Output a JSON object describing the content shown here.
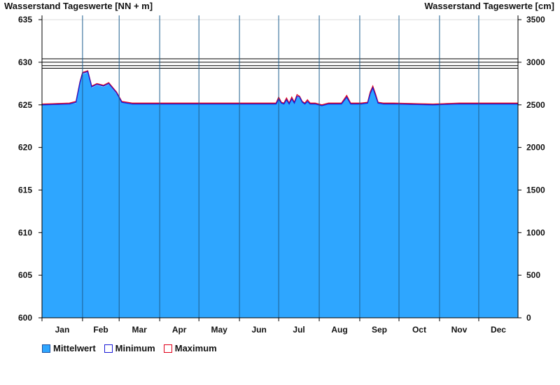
{
  "chart_data": {
    "type": "area",
    "ylabel_left": "Wasserstand Tageswerte [NN + m]",
    "ylabel_right": "Wasserstand Tageswerte [cm]",
    "ylim": [
      600,
      635.5
    ],
    "yticks_left": [
      600,
      605,
      610,
      615,
      620,
      625,
      630,
      635
    ],
    "yticks_right": [
      0,
      500,
      1000,
      1500,
      2000,
      2500,
      3000,
      3500
    ],
    "months": [
      "Jan",
      "Feb",
      "Mar",
      "Apr",
      "May",
      "Jun",
      "Jul",
      "Aug",
      "Sep",
      "Oct",
      "Nov",
      "Dec"
    ],
    "month_lengths": [
      31,
      28,
      31,
      30,
      31,
      30,
      31,
      31,
      30,
      31,
      30,
      31
    ],
    "reference_levels": [
      630.4,
      630.0,
      629.6,
      629.3
    ],
    "legend": [
      {
        "label": "Mittelwert",
        "color": "#2ea6ff"
      },
      {
        "label": "Minimum",
        "color": "#1a1ad6"
      },
      {
        "label": "Maximum",
        "color": "#e0001a"
      }
    ],
    "series": [
      {
        "name": "Mittelwert",
        "x": [
          1,
          22,
          27,
          30,
          32,
          36,
          39,
          43,
          48,
          52,
          58,
          62,
          70,
          80,
          95,
          120,
          150,
          170,
          180,
          182,
          184,
          186,
          188,
          190,
          192,
          194,
          196,
          198,
          200,
          202,
          204,
          206,
          208,
          210,
          215,
          220,
          225,
          230,
          234,
          237,
          240,
          245,
          250,
          252,
          254,
          256,
          258,
          262,
          270,
          300,
          320,
          345,
          365
        ],
        "y": [
          625.0,
          625.1,
          625.2,
          627.5,
          628.6,
          628.8,
          627.0,
          627.3,
          627.1,
          627.4,
          626.3,
          625.3,
          625.1,
          625.1,
          625.1,
          625.1,
          625.1,
          625.1,
          625.1,
          625.6,
          625.2,
          625.1,
          625.5,
          625.1,
          625.6,
          625.2,
          625.9,
          625.8,
          625.3,
          625.1,
          625.4,
          625.1,
          625.1,
          625.1,
          624.9,
          625.1,
          625.1,
          625.1,
          625.8,
          625.1,
          625.1,
          625.1,
          625.2,
          626.2,
          626.9,
          626.0,
          625.2,
          625.1,
          625.1,
          625.0,
          625.1,
          625.1,
          625.1
        ]
      },
      {
        "name": "Minimum",
        "x": [
          1,
          22,
          27,
          30,
          32,
          36,
          39,
          43,
          48,
          52,
          58,
          62,
          70,
          80,
          95,
          120,
          150,
          170,
          180,
          182,
          184,
          186,
          188,
          190,
          192,
          194,
          196,
          198,
          200,
          202,
          204,
          206,
          208,
          210,
          215,
          220,
          225,
          230,
          234,
          237,
          240,
          245,
          250,
          252,
          254,
          256,
          258,
          262,
          270,
          300,
          320,
          345,
          365
        ],
        "y": [
          625.0,
          625.1,
          625.3,
          627.6,
          628.7,
          628.9,
          627.1,
          627.4,
          627.2,
          627.5,
          626.4,
          625.3,
          625.1,
          625.1,
          625.1,
          625.1,
          625.1,
          625.1,
          625.1,
          625.7,
          625.2,
          625.1,
          625.6,
          625.1,
          625.7,
          625.2,
          626.0,
          625.9,
          625.3,
          625.1,
          625.4,
          625.1,
          625.1,
          625.1,
          624.9,
          625.1,
          625.1,
          625.1,
          625.9,
          625.1,
          625.1,
          625.1,
          625.2,
          626.3,
          627.0,
          626.1,
          625.2,
          625.1,
          625.1,
          625.0,
          625.1,
          625.1,
          625.1
        ]
      },
      {
        "name": "Maximum",
        "x": [
          1,
          22,
          27,
          30,
          32,
          36,
          39,
          43,
          48,
          52,
          58,
          62,
          70,
          80,
          95,
          120,
          150,
          170,
          180,
          182,
          184,
          186,
          188,
          190,
          192,
          194,
          196,
          198,
          200,
          202,
          204,
          206,
          208,
          210,
          215,
          220,
          225,
          230,
          234,
          237,
          240,
          245,
          250,
          252,
          254,
          256,
          258,
          262,
          270,
          300,
          320,
          345,
          365
        ],
        "y": [
          625.1,
          625.2,
          625.4,
          627.7,
          628.8,
          629.0,
          627.2,
          627.5,
          627.3,
          627.6,
          626.5,
          625.4,
          625.2,
          625.2,
          625.2,
          625.2,
          625.2,
          625.2,
          625.2,
          625.9,
          625.3,
          625.2,
          625.8,
          625.2,
          625.9,
          625.3,
          626.2,
          626.0,
          625.4,
          625.2,
          625.6,
          625.2,
          625.2,
          625.2,
          625.0,
          625.2,
          625.2,
          625.2,
          626.1,
          625.2,
          625.2,
          625.2,
          625.3,
          626.5,
          627.2,
          626.3,
          625.3,
          625.2,
          625.2,
          625.1,
          625.2,
          625.2,
          625.2
        ]
      }
    ]
  }
}
